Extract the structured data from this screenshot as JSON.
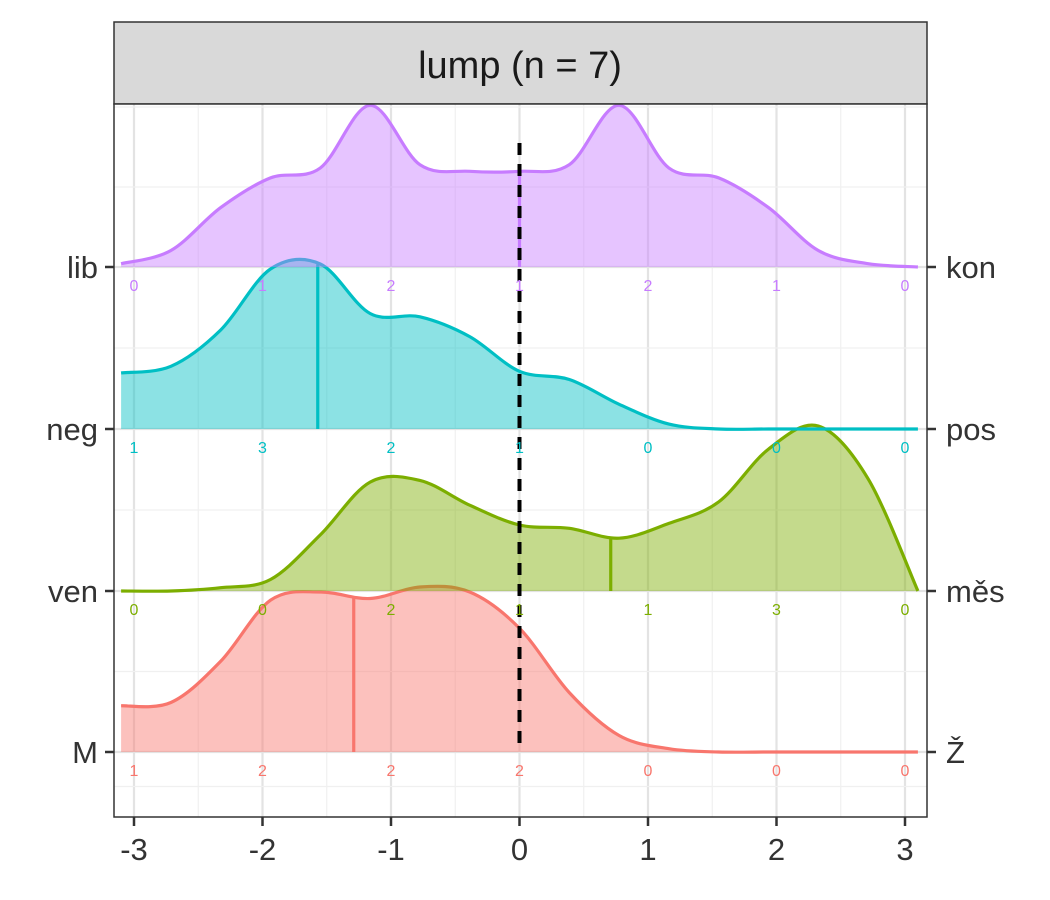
{
  "chart_data": {
    "type": "ridgeline-density",
    "facet_title": "lump (n = 7)",
    "x_ticks": [
      "-3",
      "-2",
      "-1",
      "0",
      "1",
      "2",
      "3"
    ],
    "xlim": [
      -3.1,
      3.1
    ],
    "reference_line_x": 0,
    "grid": true,
    "count_positions": [
      -3,
      -2,
      -1,
      0,
      1,
      2,
      3
    ],
    "series": [
      {
        "left_label": "M",
        "right_label": "Ž",
        "color": "#F8766D",
        "counts": [
          "1",
          "2",
          "2",
          "2",
          "0",
          "0",
          "0"
        ],
        "mean": -1.29,
        "density": [
          0.28,
          0.3,
          0.55,
          0.92,
          0.97,
          0.93,
          1.0,
          0.97,
          0.75,
          0.36,
          0.1,
          0.02,
          0.0,
          0.0,
          0.0,
          0.0,
          0.0
        ]
      },
      {
        "left_label": "ven",
        "right_label": "měs",
        "color": "#7CAE00",
        "counts": [
          "0",
          "0",
          "2",
          "1",
          "1",
          "3",
          "0"
        ],
        "mean": 0.71,
        "density": [
          0.0,
          0.0,
          0.02,
          0.07,
          0.34,
          0.66,
          0.67,
          0.52,
          0.4,
          0.38,
          0.32,
          0.41,
          0.54,
          0.86,
          1.0,
          0.68,
          0.0
        ]
      },
      {
        "left_label": "neg",
        "right_label": "pos",
        "color": "#00BFC4",
        "counts": [
          "1",
          "3",
          "2",
          "1",
          "0",
          "0",
          "0"
        ],
        "mean": -1.57,
        "density": [
          0.34,
          0.38,
          0.6,
          0.97,
          1.0,
          0.7,
          0.68,
          0.56,
          0.35,
          0.3,
          0.15,
          0.03,
          0.0,
          0.0,
          0.0,
          0.0,
          0.0
        ]
      },
      {
        "left_label": "lib",
        "right_label": "kon",
        "color": "#C77CFF",
        "counts": [
          "0",
          "1",
          "2",
          "1",
          "2",
          "1",
          "0"
        ],
        "mean": 0.0,
        "density": [
          0.02,
          0.1,
          0.36,
          0.54,
          0.6,
          0.98,
          0.62,
          0.58,
          0.58,
          0.62,
          0.98,
          0.6,
          0.54,
          0.36,
          0.1,
          0.02,
          0.0
        ]
      }
    ]
  }
}
